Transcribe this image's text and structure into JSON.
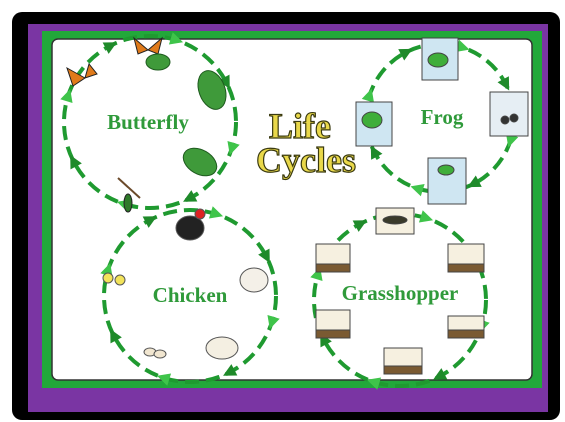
{
  "title": {
    "line1": "Life",
    "line2": "Cycles"
  },
  "cycles": [
    {
      "label": "Butterfly"
    },
    {
      "label": "Frog"
    },
    {
      "label": "Chicken"
    },
    {
      "label": "Grasshopper"
    }
  ]
}
